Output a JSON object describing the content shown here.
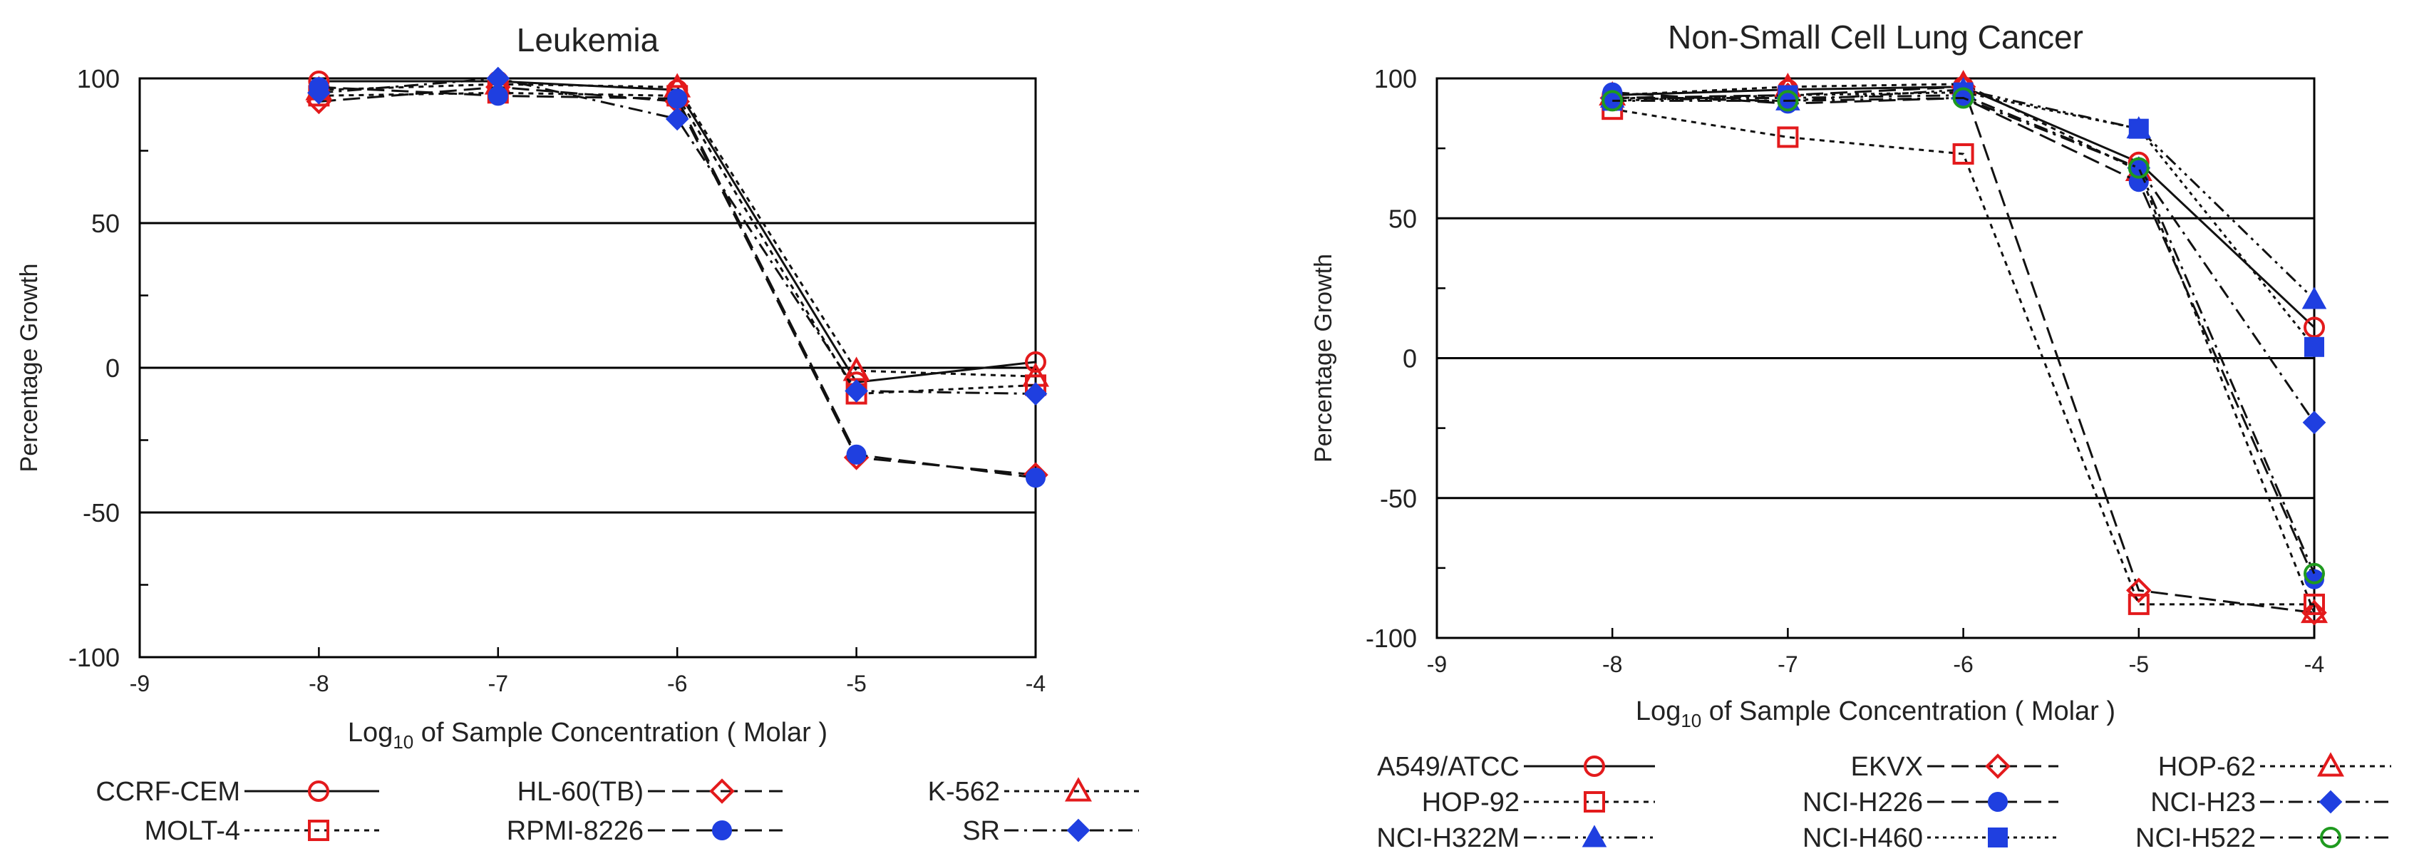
{
  "charts": [
    {
      "chart_data": {
        "type": "line",
        "title": "Leukemia",
        "xlabel_prefix": "Log",
        "xlabel_sub": "10",
        "xlabel_rest": " of Sample Concentration ( Molar )",
        "ylabel": "Percentage Growth",
        "xlim": [
          -9,
          -4
        ],
        "ylim": [
          -100,
          100
        ],
        "x": [
          -8,
          -7,
          -6,
          -5,
          -4
        ],
        "x_ticks": [
          -9,
          -8,
          -7,
          -6,
          -5,
          -4
        ],
        "x_tick_labels": [
          "-9",
          "-8",
          "-7",
          "-6",
          "-5",
          "-4"
        ],
        "y_ticks": [
          -100,
          -50,
          0,
          50,
          100
        ],
        "y_tick_labels": [
          "-100",
          "-50",
          "0",
          "50",
          "100"
        ],
        "hlines": [
          -50,
          0,
          50,
          100
        ],
        "series": [
          {
            "name": "CCRF-CEM",
            "marker": "circle-open",
            "color": "#e31a1c",
            "dash": "solid",
            "values": [
              99,
              99,
              96,
              -5,
              2
            ]
          },
          {
            "name": "HL-60(TB)",
            "marker": "diamond-open",
            "color": "#e31a1c",
            "dash": "dash",
            "values": [
              92,
              97,
              92,
              -31,
              -37
            ]
          },
          {
            "name": "K-562",
            "marker": "triangle-open",
            "color": "#e31a1c",
            "dash": "dot",
            "values": [
              96,
              98,
              97,
              -1,
              -3
            ]
          },
          {
            "name": "MOLT-4",
            "marker": "square-open",
            "color": "#e31a1c",
            "dash": "dot",
            "values": [
              94,
              95,
              94,
              -9,
              -6
            ]
          },
          {
            "name": "RPMI-8226",
            "marker": "circle-filled",
            "color": "#1f3fe0",
            "dash": "dash",
            "values": [
              97,
              94,
              93,
              -30,
              -38
            ]
          },
          {
            "name": "SR",
            "marker": "diamond-filled",
            "color": "#1f3fe0",
            "dash": "dashdot",
            "values": [
              95,
              100,
              86,
              -8,
              -9
            ]
          }
        ]
      },
      "legend_order": [
        [
          0,
          1,
          2
        ],
        [
          3,
          4,
          5
        ]
      ]
    },
    {
      "chart_data": {
        "type": "line",
        "title": "Non-Small Cell Lung Cancer",
        "xlabel_prefix": "Log",
        "xlabel_sub": "10",
        "xlabel_rest": " of Sample Concentration ( Molar )",
        "ylabel": "Percentage Growth",
        "xlim": [
          -9,
          -4
        ],
        "ylim": [
          -100,
          100
        ],
        "x": [
          -8,
          -7,
          -6,
          -5,
          -4
        ],
        "x_ticks": [
          -9,
          -8,
          -7,
          -6,
          -5,
          -4
        ],
        "x_tick_labels": [
          "-9",
          "-8",
          "-7",
          "-6",
          "-5",
          "-4"
        ],
        "y_ticks": [
          -100,
          -50,
          0,
          50,
          100
        ],
        "y_tick_labels": [
          "-100",
          "-50",
          "0",
          "50",
          "100"
        ],
        "hlines": [
          -50,
          0,
          50,
          100
        ],
        "series": [
          {
            "name": "A549/ATCC",
            "marker": "circle-open",
            "color": "#e31a1c",
            "dash": "solid",
            "values": [
              94,
              96,
              97,
              70,
              11
            ]
          },
          {
            "name": "EKVX",
            "marker": "diamond-open",
            "color": "#e31a1c",
            "dash": "dash",
            "values": [
              93,
              94,
              97,
              -83,
              -91
            ]
          },
          {
            "name": "HOP-62",
            "marker": "triangle-open",
            "color": "#e31a1c",
            "dash": "dot",
            "values": [
              94,
              97,
              98,
              67,
              -91
            ]
          },
          {
            "name": "HOP-92",
            "marker": "square-open",
            "color": "#e31a1c",
            "dash": "dot",
            "values": [
              89,
              79,
              73,
              -88,
              -88
            ]
          },
          {
            "name": "NCI-H226",
            "marker": "circle-filled",
            "color": "#1f3fe0",
            "dash": "dash",
            "values": [
              95,
              91,
              93,
              63,
              -79
            ]
          },
          {
            "name": "NCI-H23",
            "marker": "diamond-filled",
            "color": "#1f3fe0",
            "dash": "dashdot",
            "values": [
              93,
              93,
              94,
              68,
              -23
            ]
          },
          {
            "name": "NCI-H322M",
            "marker": "triangle-filled",
            "color": "#1f3fe0",
            "dash": "dashdotdot",
            "values": [
              93,
              92,
              96,
              82,
              21
            ]
          },
          {
            "name": "NCI-H460",
            "marker": "square-filled",
            "color": "#1f3fe0",
            "dash": "dotdot",
            "values": [
              92,
              94,
              95,
              82,
              4
            ]
          },
          {
            "name": "NCI-H522",
            "marker": "circle-open",
            "color": "#1f9a1f",
            "dash": "dashdot",
            "values": [
              92,
              92,
              93,
              68,
              -77
            ]
          }
        ]
      },
      "legend_order": [
        [
          0,
          1,
          2
        ],
        [
          3,
          4,
          5
        ],
        [
          6,
          7,
          8
        ]
      ]
    }
  ]
}
